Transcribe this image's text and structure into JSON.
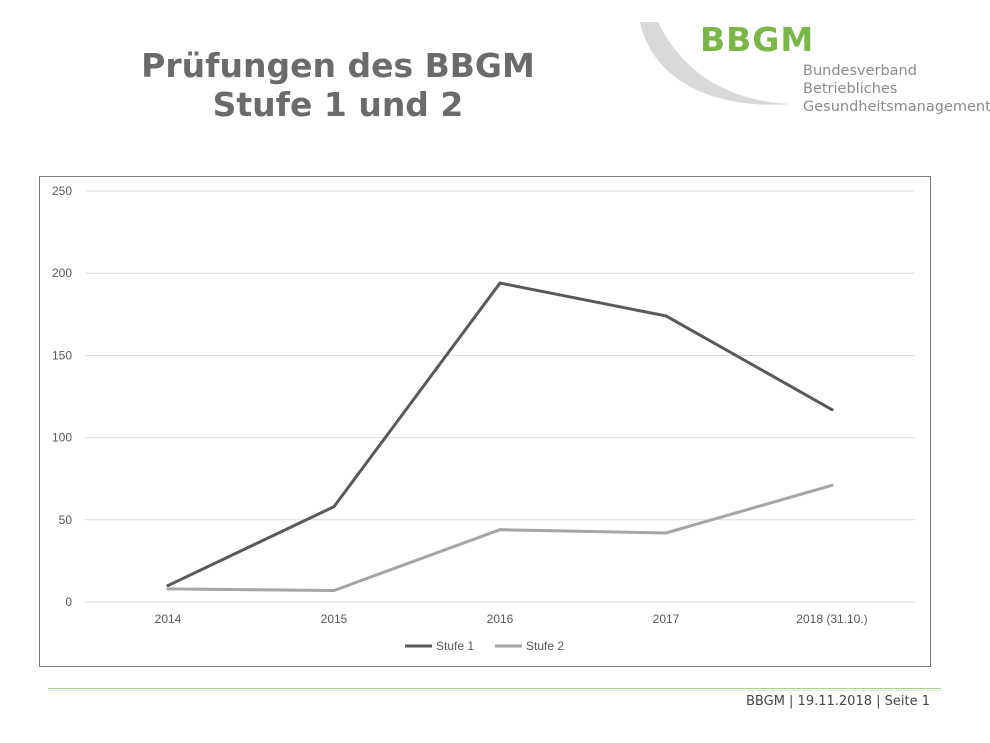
{
  "slide": {
    "title_line1": "Prüfungen des BBGM",
    "title_line2": "Stufe 1 und 2",
    "footer": "BBGM | 19.11.2018 | Seite 1"
  },
  "logo": {
    "word": "BBGM",
    "line1": "Bundesverband",
    "line2": "Betriebliches",
    "line3": "Gesundheitsmanagement",
    "green": "#7ab648",
    "swoosh": "#d9d9d9"
  },
  "chart_data": {
    "type": "line",
    "categories": [
      "2014",
      "2015",
      "2016",
      "2017",
      "2018 (31.10.)"
    ],
    "series": [
      {
        "name": "Stufe 1",
        "values": [
          10,
          58,
          194,
          174,
          117
        ],
        "color": "#595959"
      },
      {
        "name": "Stufe 2",
        "values": [
          8,
          7,
          44,
          42,
          71
        ],
        "color": "#a5a5a5"
      }
    ],
    "ylim": [
      0,
      250
    ],
    "yticks": [
      0,
      50,
      100,
      150,
      200,
      250
    ],
    "grid": true,
    "legend": "bottom"
  }
}
